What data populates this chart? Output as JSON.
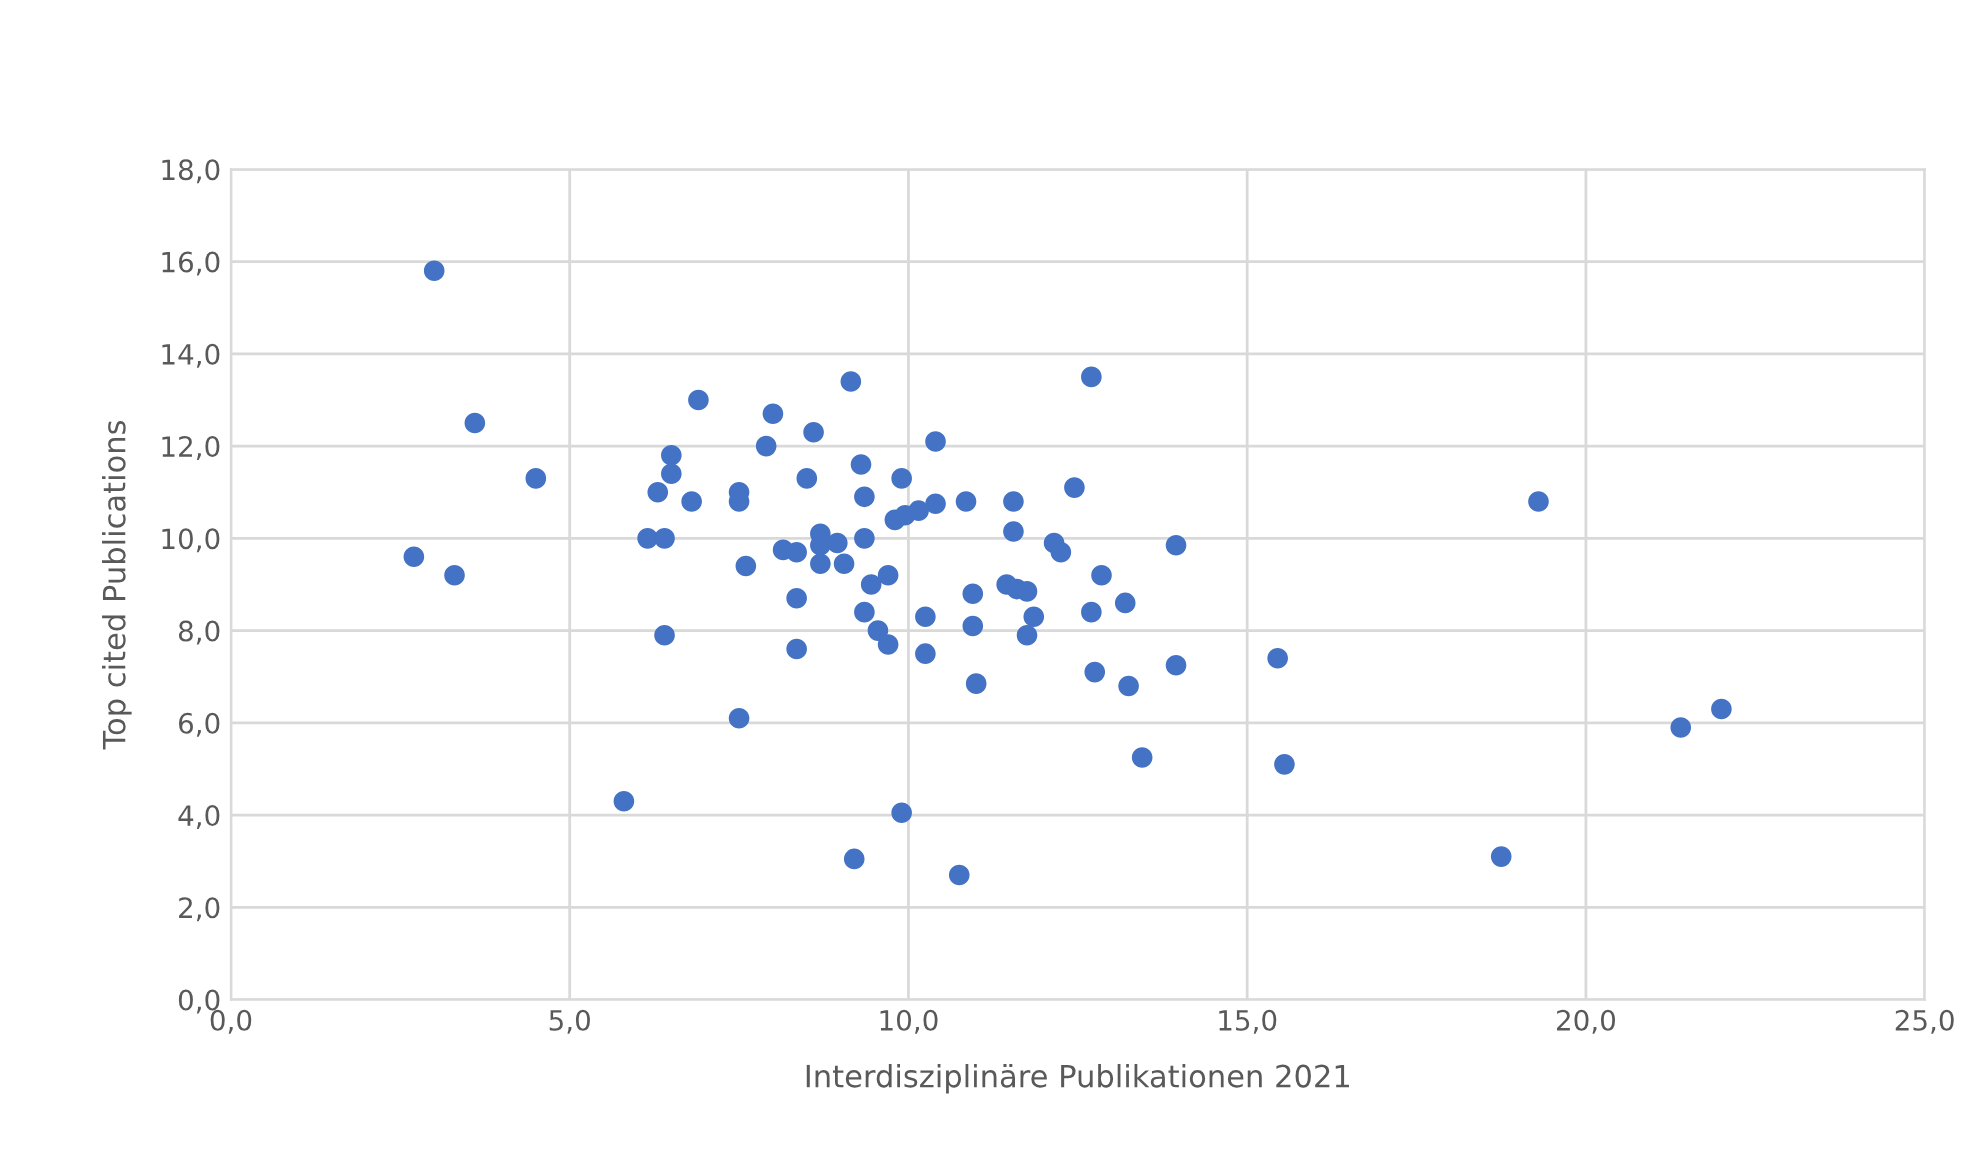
{
  "chart_data": {
    "type": "scatter",
    "xlabel": "Interdisziplinäre Publikationen 2021",
    "ylabel": "Top cited Publications",
    "xlim": [
      0,
      25
    ],
    "ylim": [
      0,
      18
    ],
    "xticks": [
      {
        "value": 0,
        "label": "0,0"
      },
      {
        "value": 5,
        "label": "5,0"
      },
      {
        "value": 10,
        "label": "10,0"
      },
      {
        "value": 15,
        "label": "15,0"
      },
      {
        "value": 20,
        "label": "20,0"
      },
      {
        "value": 25,
        "label": "25,0"
      }
    ],
    "yticks": [
      {
        "value": 0,
        "label": "0,0"
      },
      {
        "value": 2,
        "label": "2,0"
      },
      {
        "value": 4,
        "label": "4,0"
      },
      {
        "value": 6,
        "label": "6,0"
      },
      {
        "value": 8,
        "label": "8,0"
      },
      {
        "value": 10,
        "label": "10,0"
      },
      {
        "value": 12,
        "label": "12,0"
      },
      {
        "value": 14,
        "label": "14,0"
      },
      {
        "value": 16,
        "label": "16,0"
      },
      {
        "value": 18,
        "label": "18,0"
      }
    ],
    "grid": true,
    "marker": "circle",
    "series": [
      {
        "color": "#4472c4",
        "x": [
          3.0,
          3.6,
          4.5,
          2.7,
          3.3,
          5.8,
          6.15,
          6.4,
          6.5,
          6.5,
          6.3,
          6.8,
          6.9,
          7.5,
          7.5,
          8.0,
          7.9,
          6.4,
          7.6,
          7.5,
          8.6,
          9.15,
          8.5,
          9.3,
          9.35,
          9.9,
          10.4,
          12.7,
          9.8,
          9.95,
          10.15,
          10.4,
          10.85,
          11.55,
          11.55,
          12.45,
          12.15,
          12.25,
          13.95,
          8.15,
          8.35,
          8.7,
          8.7,
          8.7,
          8.95,
          9.05,
          9.35,
          9.45,
          9.7,
          8.35,
          9.35,
          9.55,
          9.7,
          8.35,
          10.25,
          10.25,
          10.95,
          10.95,
          11.0,
          11.45,
          11.6,
          11.75,
          11.85,
          11.75,
          12.85,
          12.7,
          13.2,
          12.75,
          13.25,
          13.95,
          13.45,
          15.45,
          15.55,
          9.9,
          9.2,
          10.75,
          19.3,
          18.75,
          21.4,
          22.0
        ],
        "values": [
          15.8,
          12.5,
          11.3,
          9.6,
          9.2,
          4.3,
          10.0,
          10.0,
          11.8,
          11.4,
          11.0,
          10.8,
          13.0,
          11.0,
          10.8,
          12.7,
          12.0,
          7.9,
          9.4,
          6.1,
          12.3,
          13.4,
          11.3,
          11.6,
          10.9,
          11.3,
          12.1,
          13.5,
          10.4,
          10.5,
          10.6,
          10.75,
          10.8,
          10.8,
          10.15,
          11.1,
          9.9,
          9.7,
          9.85,
          9.75,
          9.7,
          10.1,
          9.85,
          9.45,
          9.9,
          9.45,
          10.0,
          9.0,
          9.2,
          8.7,
          8.4,
          8.0,
          7.7,
          7.6,
          8.3,
          7.5,
          8.8,
          8.1,
          6.85,
          9.0,
          8.9,
          8.85,
          8.3,
          7.9,
          9.2,
          8.4,
          8.6,
          7.1,
          6.8,
          7.25,
          5.25,
          7.4,
          5.1,
          4.05,
          3.05,
          2.7,
          10.8,
          3.1,
          5.9,
          6.3
        ]
      }
    ]
  }
}
